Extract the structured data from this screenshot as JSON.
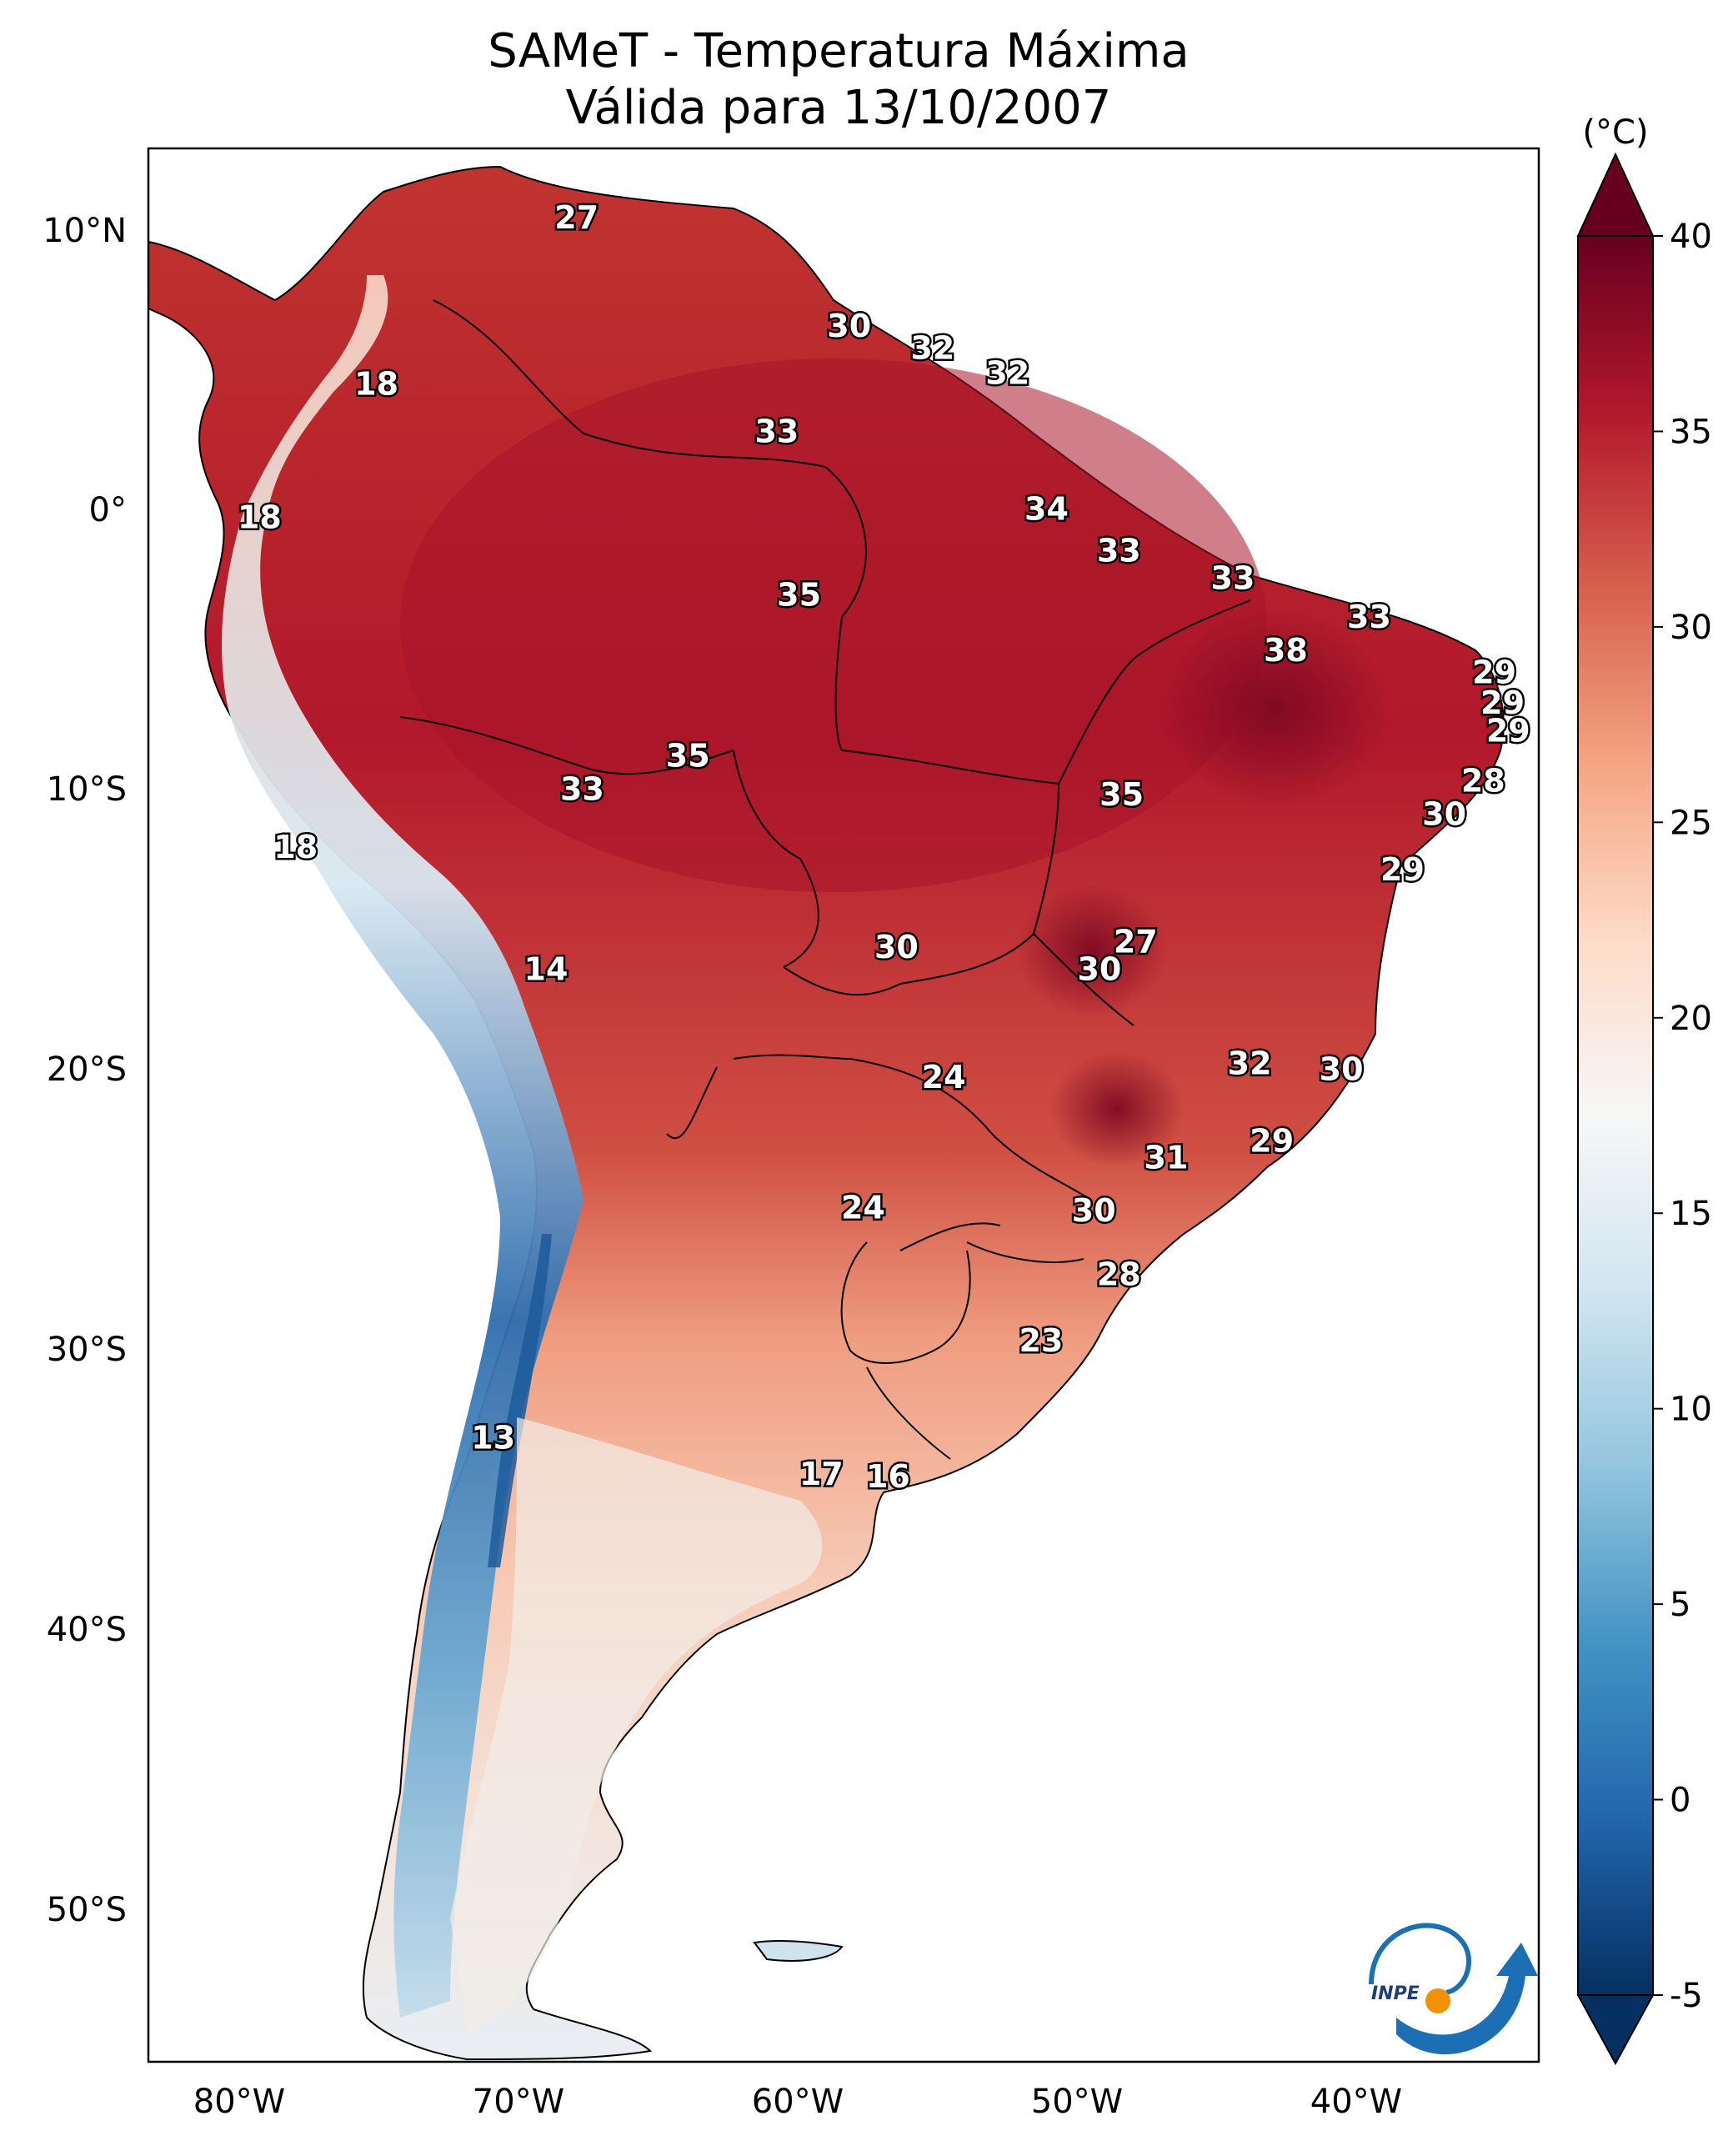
{
  "title_line1": "SAMeT - Temperatura Máxima",
  "title_line2": "Válida para 13/10/2007",
  "colorbar": {
    "unit": "(°C)",
    "min": -5,
    "max": 40,
    "ticks": [
      "40",
      "35",
      "30",
      "25",
      "20",
      "15",
      "10",
      "5",
      "0",
      "-5"
    ],
    "colors": [
      "#053061",
      "#2166ac",
      "#4393c3",
      "#92c5de",
      "#d1e5f0",
      "#f7f7f7",
      "#fddbc7",
      "#f4a582",
      "#d6604d",
      "#b2182b",
      "#67001f"
    ]
  },
  "lat_ticks": [
    "10°N",
    "0°",
    "10°S",
    "20°S",
    "30°S",
    "40°S",
    "50°S"
  ],
  "lon_ticks": [
    "80°W",
    "70°W",
    "60°W",
    "50°W",
    "40°W"
  ],
  "map_data": {
    "type": "heatmap",
    "lon_range": [
      -83,
      -33
    ],
    "lat_range": [
      -56,
      13
    ],
    "variable": "Temperatura Máxima",
    "labels": [
      {
        "text": "27",
        "lon": -67.6,
        "lat": 10.5
      },
      {
        "text": "30",
        "lon": -57.8,
        "lat": 6.6
      },
      {
        "text": "32",
        "lon": -54.8,
        "lat": 5.8
      },
      {
        "text": "32",
        "lon": -52.1,
        "lat": 4.9
      },
      {
        "text": "18",
        "lon": -74.8,
        "lat": 4.5
      },
      {
        "text": "33",
        "lon": -60.4,
        "lat": 2.8
      },
      {
        "text": "34",
        "lon": -50.7,
        "lat": 0.0
      },
      {
        "text": "18",
        "lon": -79.0,
        "lat": -0.3
      },
      {
        "text": "33",
        "lon": -48.1,
        "lat": -1.5
      },
      {
        "text": "33",
        "lon": -44.0,
        "lat": -2.5
      },
      {
        "text": "35",
        "lon": -59.6,
        "lat": -3.1
      },
      {
        "text": "33",
        "lon": -39.1,
        "lat": -3.9
      },
      {
        "text": "38",
        "lon": -42.1,
        "lat": -5.1
      },
      {
        "text": "29",
        "lon": -34.6,
        "lat": -5.9
      },
      {
        "text": "29",
        "lon": -34.3,
        "lat": -7.0
      },
      {
        "text": "29",
        "lon": -34.1,
        "lat": -8.0
      },
      {
        "text": "35",
        "lon": -63.6,
        "lat": -8.9
      },
      {
        "text": "28",
        "lon": -35.0,
        "lat": -9.8
      },
      {
        "text": "33",
        "lon": -67.4,
        "lat": -10.1
      },
      {
        "text": "35",
        "lon": -48.0,
        "lat": -10.3
      },
      {
        "text": "30",
        "lon": -36.4,
        "lat": -11.0
      },
      {
        "text": "18",
        "lon": -77.7,
        "lat": -12.2
      },
      {
        "text": "29",
        "lon": -37.9,
        "lat": -13.0
      },
      {
        "text": "27",
        "lon": -47.5,
        "lat": -15.6
      },
      {
        "text": "30",
        "lon": -56.1,
        "lat": -15.8
      },
      {
        "text": "30",
        "lon": -48.8,
        "lat": -16.6
      },
      {
        "text": "14",
        "lon": -68.7,
        "lat": -16.6
      },
      {
        "text": "32",
        "lon": -43.4,
        "lat": -20.0
      },
      {
        "text": "30",
        "lon": -40.1,
        "lat": -20.2
      },
      {
        "text": "24",
        "lon": -54.4,
        "lat": -20.5
      },
      {
        "text": "29",
        "lon": -42.6,
        "lat": -22.8
      },
      {
        "text": "31",
        "lon": -46.4,
        "lat": -23.4
      },
      {
        "text": "24",
        "lon": -57.3,
        "lat": -25.2
      },
      {
        "text": "30",
        "lon": -49.0,
        "lat": -25.3
      },
      {
        "text": "28",
        "lon": -48.1,
        "lat": -27.6
      },
      {
        "text": "23",
        "lon": -50.9,
        "lat": -30.0
      },
      {
        "text": "13",
        "lon": -70.6,
        "lat": -33.5
      },
      {
        "text": "17",
        "lon": -58.8,
        "lat": -34.8
      },
      {
        "text": "16",
        "lon": -56.4,
        "lat": -34.9
      }
    ]
  },
  "logo_text": "INPE"
}
